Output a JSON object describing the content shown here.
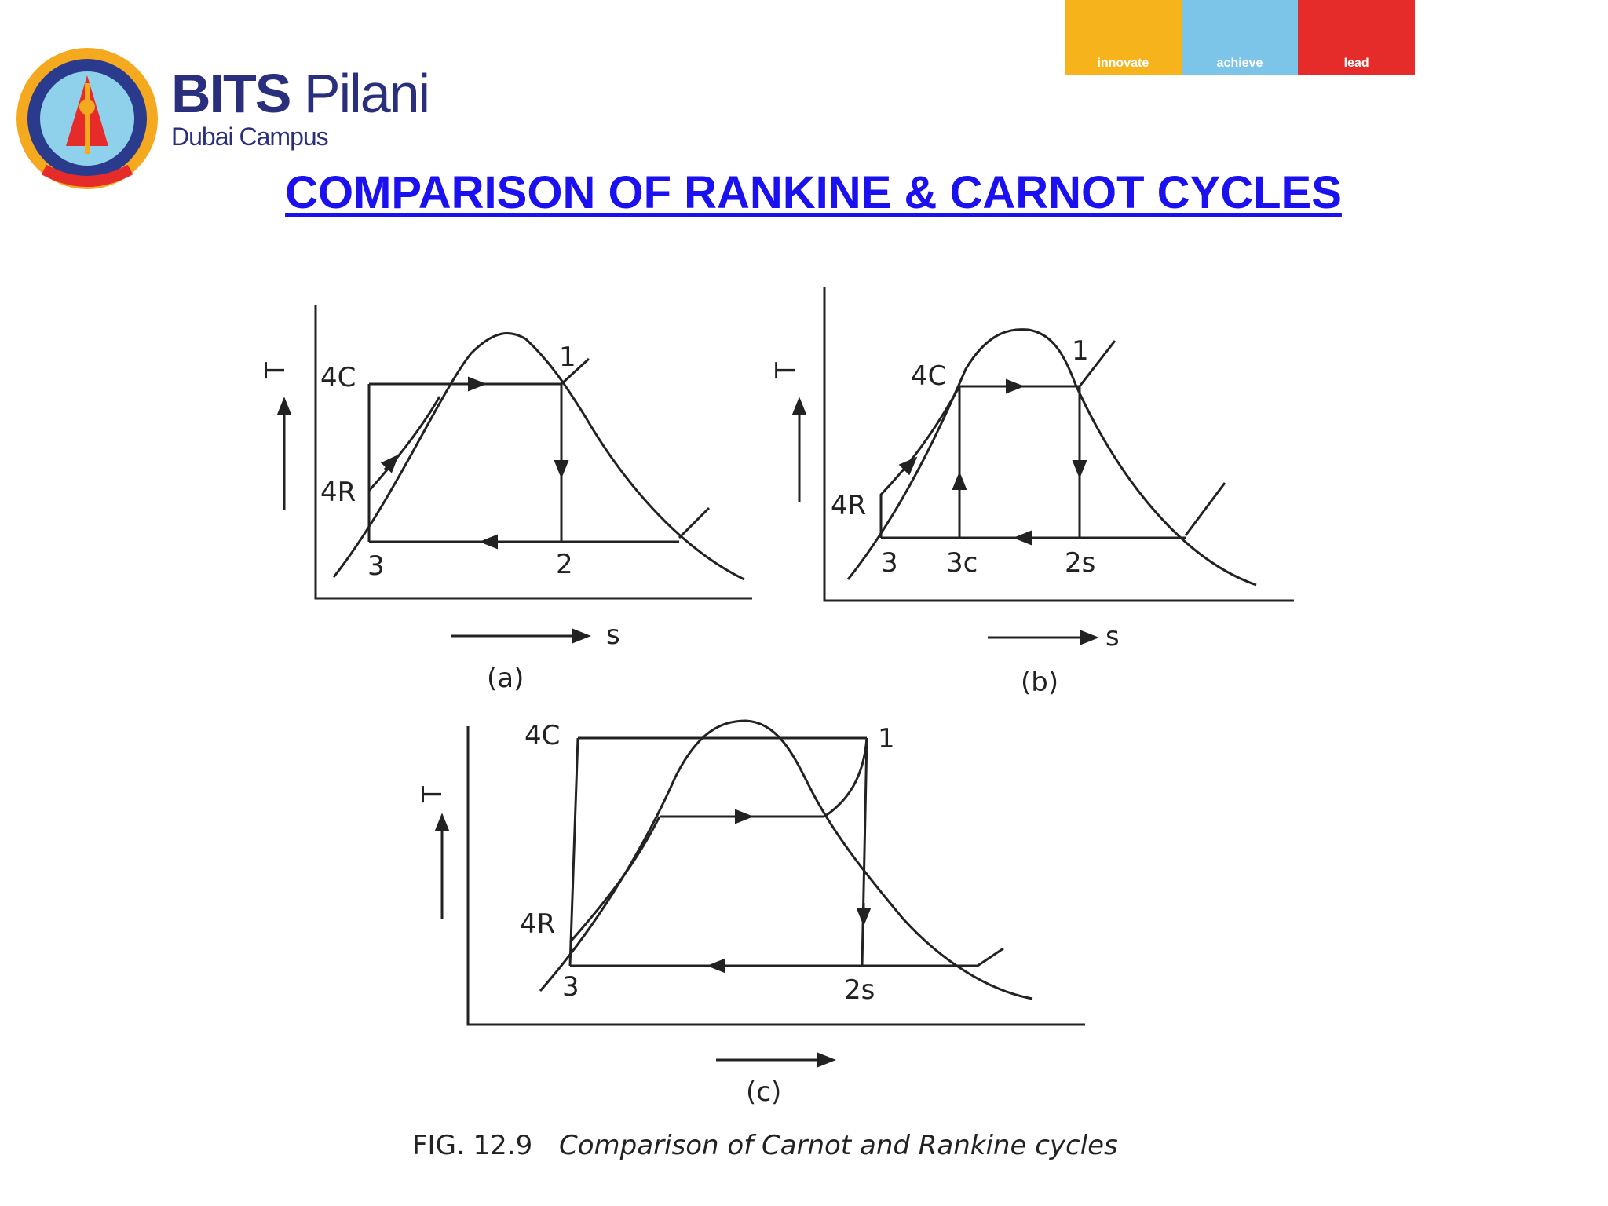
{
  "header": {
    "brand_bold": "BITS",
    "brand_light": "Pilani",
    "campus": "Dubai Campus",
    "tagline": [
      "innovate",
      "achieve",
      "lead"
    ],
    "colors": {
      "innovate": "#f6b31b",
      "achieve": "#7cc4e8",
      "lead": "#e52c2a",
      "brand": "#2a2f7d",
      "title": "#1a10f0"
    }
  },
  "slide": {
    "title": "COMPARISON OF RANKINE  & CARNOT CYCLES"
  },
  "figure": {
    "panel_a": {
      "caption": "(a)",
      "y_axis": "T",
      "x_axis": "s",
      "labels": {
        "p4c": "4C",
        "p4r": "4R",
        "p1": "1",
        "p2": "2",
        "p3": "3"
      }
    },
    "panel_b": {
      "caption": "(b)",
      "y_axis": "T",
      "x_axis": "s",
      "labels": {
        "p4c": "4C",
        "p4r": "4R",
        "p1": "1",
        "p2s": "2s",
        "p3": "3",
        "p3c": "3c"
      }
    },
    "panel_c": {
      "caption": "(c)",
      "y_axis": "T",
      "labels": {
        "p4c": "4C",
        "p4r": "4R",
        "p1": "1",
        "p2s": "2s",
        "p3": "3"
      }
    },
    "caption_number": "FIG. 12.9",
    "caption_text": "Comparison of Carnot and Rankine cycles"
  }
}
